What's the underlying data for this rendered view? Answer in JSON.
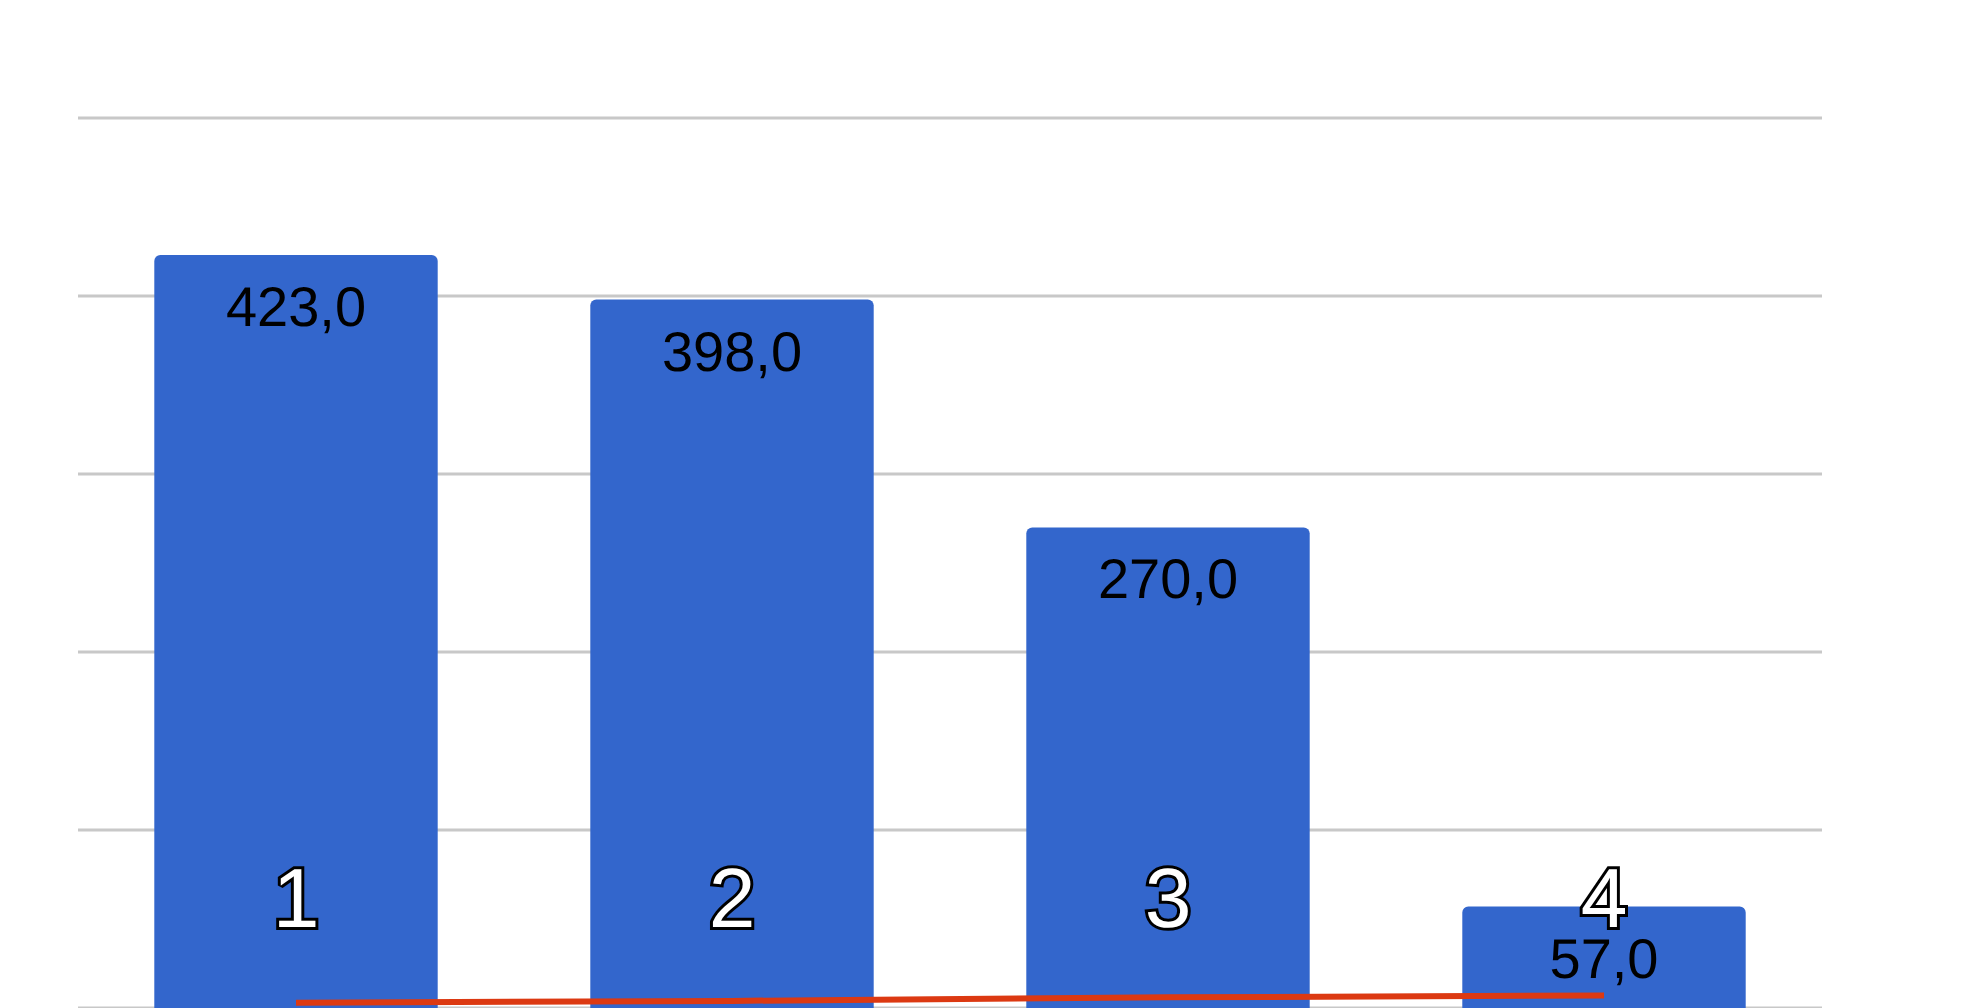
{
  "chart_data": {
    "type": "bar",
    "categories": [
      "1",
      "2",
      "3",
      "4"
    ],
    "series": [
      {
        "color": "#3366cc",
        "values": [
          423,
          398,
          270,
          57
        ],
        "value_labels": [
          "423,0",
          "398,0",
          "270,0",
          "57,0"
        ]
      },
      {
        "type": "line",
        "color": "#dc3912",
        "values": [
          3,
          4,
          6,
          7
        ]
      }
    ],
    "ylim": [
      0,
      500
    ],
    "yticks": [
      0,
      100,
      200,
      300,
      400,
      500
    ],
    "grid": "y",
    "tick_labels": "x",
    "marker": "none"
  }
}
